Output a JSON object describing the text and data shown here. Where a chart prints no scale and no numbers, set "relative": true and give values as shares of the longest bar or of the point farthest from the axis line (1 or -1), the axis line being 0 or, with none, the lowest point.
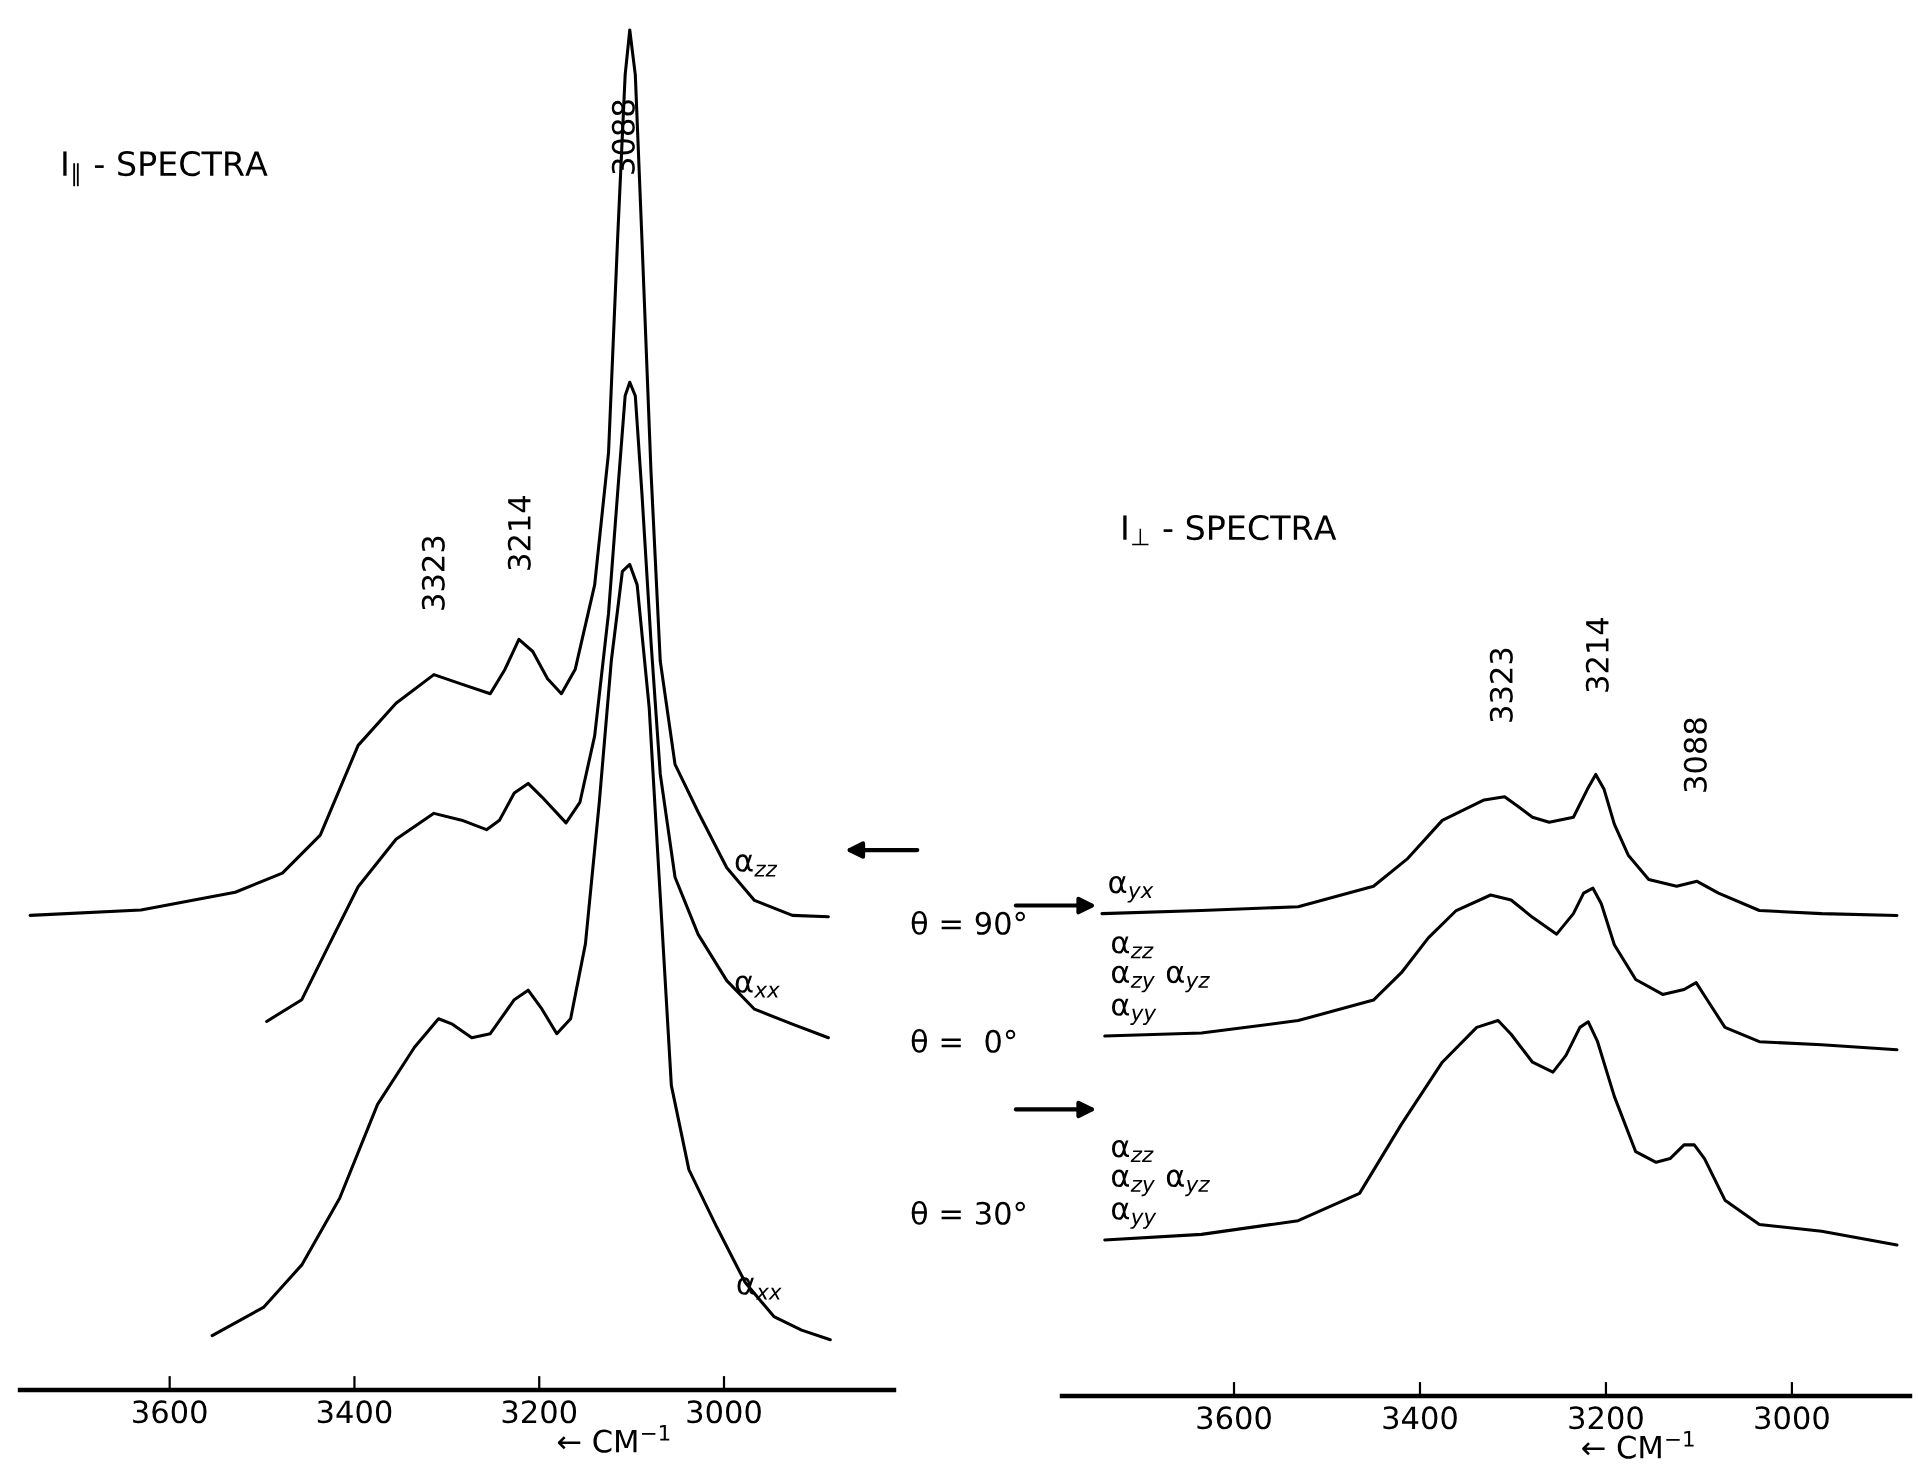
{
  "chart_data": [
    {
      "type": "line",
      "title": "I$_{∥}$ - SPECTRA",
      "xlabel": "← CM$^{−1}$",
      "xlim": [
        3762,
        2816
      ],
      "xticks": [
        3600,
        3400,
        3200,
        3000
      ],
      "relative": true,
      "tick_labels": "x",
      "series": [
        {
          "name": "α$_{zz}$",
          "color": "#000000",
          "x": [
            3751,
            3631,
            3529,
            3478,
            3437,
            3396,
            3355,
            3314,
            3284,
            3253,
            3237,
            3222,
            3207,
            3191,
            3176,
            3161,
            3140,
            3125,
            3115,
            3107,
            3102,
            3096,
            3089,
            3079,
            3069,
            3053,
            3028,
            2997,
            2967,
            2926,
            2887
          ],
          "values": [
            0.349,
            0.353,
            0.366,
            0.38,
            0.408,
            0.474,
            0.505,
            0.526,
            0.519,
            0.512,
            0.53,
            0.552,
            0.543,
            0.523,
            0.512,
            0.53,
            0.592,
            0.689,
            0.849,
            0.967,
            1,
            0.967,
            0.849,
            0.675,
            0.536,
            0.46,
            0.425,
            0.384,
            0.36,
            0.349,
            0.348
          ]
        },
        {
          "name": "α$_{xx}$",
          "color": "#000000",
          "x": [
            3495,
            3457,
            3427,
            3396,
            3355,
            3314,
            3284,
            3257,
            3243,
            3227,
            3212,
            3197,
            3171,
            3156,
            3140,
            3125,
            3115,
            3107,
            3102,
            3096,
            3089,
            3079,
            3069,
            3053,
            3028,
            2997,
            2967,
            2926,
            2887
          ],
          "values": [
            0.271,
            0.287,
            0.328,
            0.37,
            0.405,
            0.424,
            0.419,
            0.412,
            0.419,
            0.439,
            0.446,
            0.436,
            0.417,
            0.432,
            0.481,
            0.571,
            0.661,
            0.731,
            0.741,
            0.731,
            0.661,
            0.55,
            0.453,
            0.377,
            0.335,
            0.301,
            0.28,
            0.269,
            0.259
          ]
        },
        {
          "name": "α$_{xx}$",
          "color": "#000000",
          "x": [
            3554,
            3498,
            3457,
            3416,
            3375,
            3335,
            3309,
            3294,
            3273,
            3253,
            3227,
            3212,
            3197,
            3181,
            3166,
            3150,
            3135,
            3122,
            3110,
            3102,
            3094,
            3081,
            3069,
            3057,
            3038,
            3008,
            2977,
            2946,
            2916,
            2885
          ],
          "values": [
            0.04,
            0.061,
            0.092,
            0.141,
            0.21,
            0.252,
            0.273,
            0.269,
            0.259,
            0.262,
            0.287,
            0.294,
            0.28,
            0.262,
            0.273,
            0.328,
            0.432,
            0.536,
            0.602,
            0.607,
            0.592,
            0.502,
            0.363,
            0.224,
            0.162,
            0.12,
            0.079,
            0.054,
            0.044,
            0.037
          ]
        }
      ],
      "annotations": [
        "3323",
        "3214",
        "3088"
      ]
    },
    {
      "type": "line",
      "title": "I$_{⊥}$ - SPECTRA",
      "xlabel": "← CM$^{−1}$",
      "xlim": [
        3785,
        2873
      ],
      "xticks": [
        3600,
        3400,
        3200,
        3000
      ],
      "relative": true,
      "tick_labels": "x",
      "series": [
        {
          "name": "α$_{yx}$",
          "color": "#000000",
          "x": [
            3742,
            3635,
            3531,
            3450,
            3413,
            3376,
            3331,
            3309,
            3294,
            3279,
            3261,
            3235,
            3220,
            3211,
            3202,
            3191,
            3176,
            3154,
            3124,
            3102,
            3079,
            3035,
            2968,
            2887
          ],
          "values": [
            0.776,
            0.781,
            0.787,
            0.82,
            0.865,
            0.926,
            0.959,
            0.964,
            0.948,
            0.931,
            0.923,
            0.931,
            0.976,
            1,
            0.976,
            0.92,
            0.87,
            0.831,
            0.82,
            0.828,
            0.809,
            0.781,
            0.776,
            0.773
          ]
        },
        {
          "name": "α$_{zz}$\nα$_{zy}$ α$_{yz}$\nα$_{yy}$",
          "color": "#000000",
          "x": [
            3739,
            3635,
            3531,
            3450,
            3420,
            3391,
            3361,
            3324,
            3302,
            3279,
            3253,
            3235,
            3224,
            3214,
            3205,
            3191,
            3168,
            3139,
            3116,
            3103,
            3091,
            3072,
            3035,
            2968,
            2887
          ],
          "values": [
            0.579,
            0.584,
            0.604,
            0.637,
            0.681,
            0.737,
            0.781,
            0.806,
            0.798,
            0.77,
            0.743,
            0.776,
            0.809,
            0.817,
            0.792,
            0.726,
            0.67,
            0.646,
            0.654,
            0.665,
            0.637,
            0.593,
            0.57,
            0.565,
            0.557
          ]
        },
        {
          "name": "α$_{zz}$\nα$_{zy}$ α$_{yz}$\nα$_{yy}$",
          "color": "#000000",
          "x": [
            3739,
            3635,
            3531,
            3465,
            3420,
            3376,
            3339,
            3316,
            3302,
            3279,
            3257,
            3243,
            3228,
            3219,
            3209,
            3191,
            3168,
            3146,
            3131,
            3116,
            3105,
            3094,
            3072,
            3035,
            2968,
            2887
          ],
          "values": [
            0.251,
            0.26,
            0.282,
            0.326,
            0.437,
            0.537,
            0.593,
            0.604,
            0.582,
            0.537,
            0.521,
            0.548,
            0.593,
            0.602,
            0.57,
            0.482,
            0.393,
            0.376,
            0.382,
            0.404,
            0.404,
            0.382,
            0.315,
            0.276,
            0.265,
            0.243
          ]
        }
      ],
      "annotations": [
        "3323",
        "3214",
        "3088",
        "θ = 90°",
        "θ =  0°",
        "θ = 30°"
      ]
    }
  ]
}
